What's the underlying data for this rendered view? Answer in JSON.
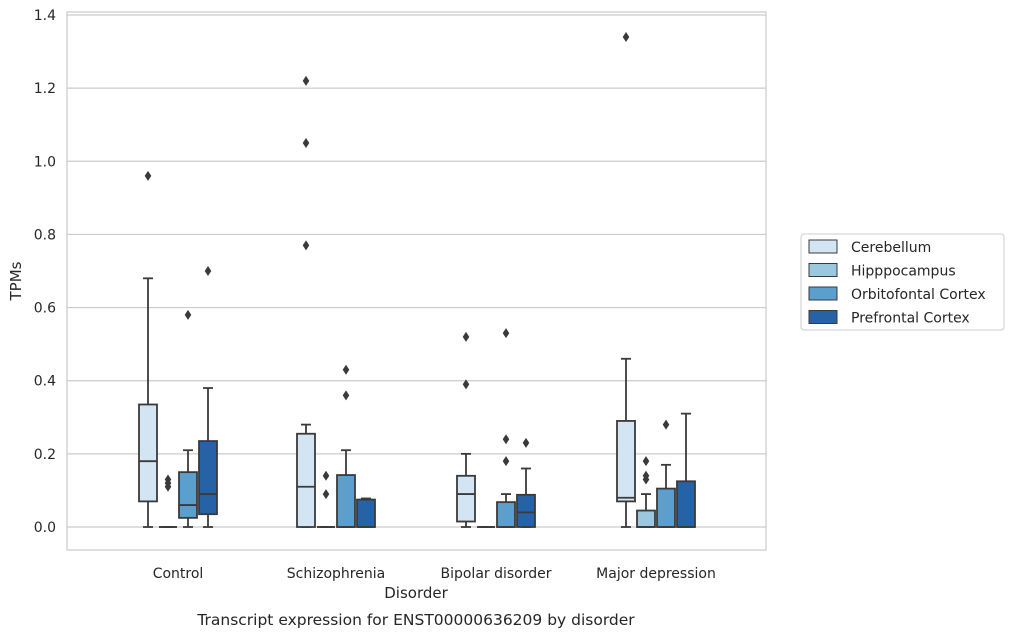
{
  "chart_data": {
    "type": "box",
    "xlabel": "Disorder",
    "ylabel": "TPMs",
    "caption": "Transcript expression for ENST00000636209 by disorder",
    "ylim": [
      -0.065,
      1.41
    ],
    "yticks": [
      0.0,
      0.2,
      0.4,
      0.6,
      0.8,
      1.0,
      1.2,
      1.4
    ],
    "ytick_labels": [
      "0.0",
      "0.2",
      "0.4",
      "0.6",
      "0.8",
      "1.0",
      "1.2",
      "1.4"
    ],
    "grid": "horizontal",
    "legend_placement": "right",
    "categories": [
      "Control",
      "Schizophrenia",
      "Bipolar disorder",
      "Major depression"
    ],
    "series": [
      {
        "name": "Cerebellum",
        "color": "#d3e4f3",
        "boxes": [
          {
            "whislo": 0.0,
            "q1": 0.07,
            "med": 0.18,
            "q3": 0.335,
            "whishi": 0.68,
            "fliers": [
              0.96
            ]
          },
          {
            "whislo": 0.0,
            "q1": 0.0,
            "med": 0.11,
            "q3": 0.255,
            "whishi": 0.28,
            "fliers": [
              0.77,
              1.05,
              1.22
            ]
          },
          {
            "whislo": 0.0,
            "q1": 0.015,
            "med": 0.09,
            "q3": 0.14,
            "whishi": 0.2,
            "fliers": [
              0.39,
              0.52
            ]
          },
          {
            "whislo": 0.0,
            "q1": 0.07,
            "med": 0.08,
            "q3": 0.29,
            "whishi": 0.46,
            "fliers": [
              1.34
            ]
          }
        ]
      },
      {
        "name": "Hipppocampus",
        "color": "#9ac8e0",
        "boxes": [
          {
            "whislo": 0.0,
            "q1": 0.0,
            "med": 0.0,
            "q3": 0.0,
            "whishi": 0.0,
            "fliers": [
              0.11,
              0.12,
              0.13
            ]
          },
          {
            "whislo": 0.0,
            "q1": 0.0,
            "med": 0.0,
            "q3": 0.0,
            "whishi": 0.0,
            "fliers": [
              0.09,
              0.14
            ]
          },
          {
            "whislo": 0.0,
            "q1": 0.0,
            "med": 0.0,
            "q3": 0.0,
            "whishi": 0.0,
            "fliers": []
          },
          {
            "whislo": 0.0,
            "q1": 0.0,
            "med": 0.0,
            "q3": 0.045,
            "whishi": 0.09,
            "fliers": [
              0.13,
              0.14,
              0.18
            ]
          }
        ]
      },
      {
        "name": "Orbitofontal Cortex",
        "color": "#5a9fcd",
        "boxes": [
          {
            "whislo": 0.0,
            "q1": 0.025,
            "med": 0.06,
            "q3": 0.15,
            "whishi": 0.21,
            "fliers": [
              0.58
            ]
          },
          {
            "whislo": 0.0,
            "q1": 0.0,
            "med": 0.0,
            "q3": 0.142,
            "whishi": 0.21,
            "fliers": [
              0.36,
              0.43
            ]
          },
          {
            "whislo": 0.0,
            "q1": 0.0,
            "med": 0.0,
            "q3": 0.068,
            "whishi": 0.09,
            "fliers": [
              0.18,
              0.24,
              0.53
            ]
          },
          {
            "whislo": 0.0,
            "q1": 0.0,
            "med": 0.0,
            "q3": 0.105,
            "whishi": 0.17,
            "fliers": [
              0.28
            ]
          }
        ]
      },
      {
        "name": "Prefrontal Cortex",
        "color": "#2563a6",
        "boxes": [
          {
            "whislo": 0.0,
            "q1": 0.035,
            "med": 0.09,
            "q3": 0.235,
            "whishi": 0.38,
            "fliers": [
              0.7
            ]
          },
          {
            "whislo": 0.0,
            "q1": 0.0,
            "med": 0.0,
            "q3": 0.075,
            "whishi": 0.078,
            "fliers": []
          },
          {
            "whislo": 0.0,
            "q1": 0.0,
            "med": 0.04,
            "q3": 0.088,
            "whishi": 0.16,
            "fliers": [
              0.23
            ]
          },
          {
            "whislo": 0.0,
            "q1": 0.0,
            "med": 0.0,
            "q3": 0.125,
            "whishi": 0.31,
            "fliers": []
          }
        ]
      }
    ]
  }
}
